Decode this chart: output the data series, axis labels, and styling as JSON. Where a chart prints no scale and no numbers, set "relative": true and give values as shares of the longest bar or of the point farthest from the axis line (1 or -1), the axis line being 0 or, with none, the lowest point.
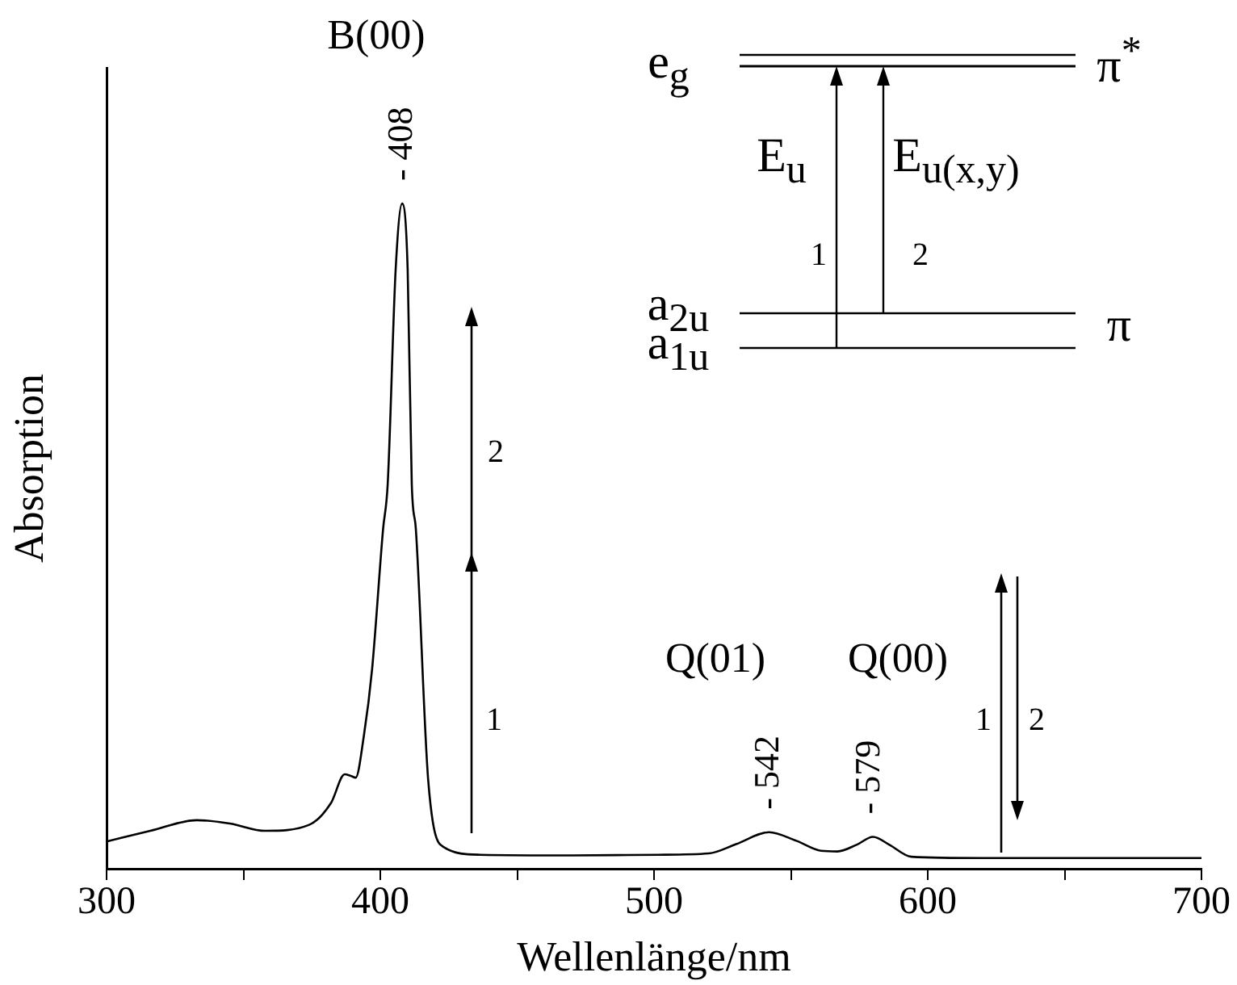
{
  "chart_data": {
    "type": "line",
    "relative": true,
    "xlabel": "Wellenlänge/nm",
    "ylabel": "Absorption",
    "x": [
      300,
      316,
      333,
      345,
      358,
      374,
      382,
      387,
      389,
      391,
      394,
      397,
      401,
      402.7,
      405.6,
      408,
      410,
      411.5,
      413,
      417.5,
      423,
      436.5,
      470,
      501.5,
      520,
      530,
      542,
      552,
      561,
      567,
      574,
      580,
      586,
      594,
      620,
      660,
      700
    ],
    "series": [
      {
        "color": "#000000",
        "values": [
          0.041,
          0.057,
          0.073,
          0.068,
          0.057,
          0.066,
          0.099,
          0.142,
          0.14,
          0.137,
          0.2,
          0.3,
          0.51,
          0.578,
          0.9,
          1,
          0.9,
          0.578,
          0.51,
          0.133,
          0.033,
          0.021,
          0.02,
          0.021,
          0.023,
          0.037,
          0.055,
          0.042,
          0.027,
          0.026,
          0.036,
          0.048,
          0.036,
          0.018,
          0.016,
          0.016,
          0.016
        ]
      }
    ],
    "xlim": [
      300,
      700
    ],
    "xticks": [
      300,
      {
        "value": 350,
        "label": null
      },
      400,
      {
        "value": 450,
        "label": null
      },
      500,
      {
        "value": 550,
        "label": null
      },
      600,
      {
        "value": 650,
        "label": null
      },
      700
    ],
    "grid": false,
    "legend": false,
    "annotations": [
      "B(00)",
      {
        "text": "- 408",
        "x": 408,
        "y": 1
      },
      "Q(01)",
      {
        "text": "- 542",
        "x": 542,
        "y": 0.055
      },
      "Q(00)",
      {
        "text": "- 579",
        "x": 579,
        "y": 0.048
      },
      "1",
      "2",
      "1",
      "2",
      "e$_{g}$",
      "π$^{*}$",
      "E$_{u}$",
      "E$_{u(x,y)}$",
      "1",
      "2",
      "a$_{2u}$",
      "a$_{1u}$",
      "π"
    ]
  }
}
